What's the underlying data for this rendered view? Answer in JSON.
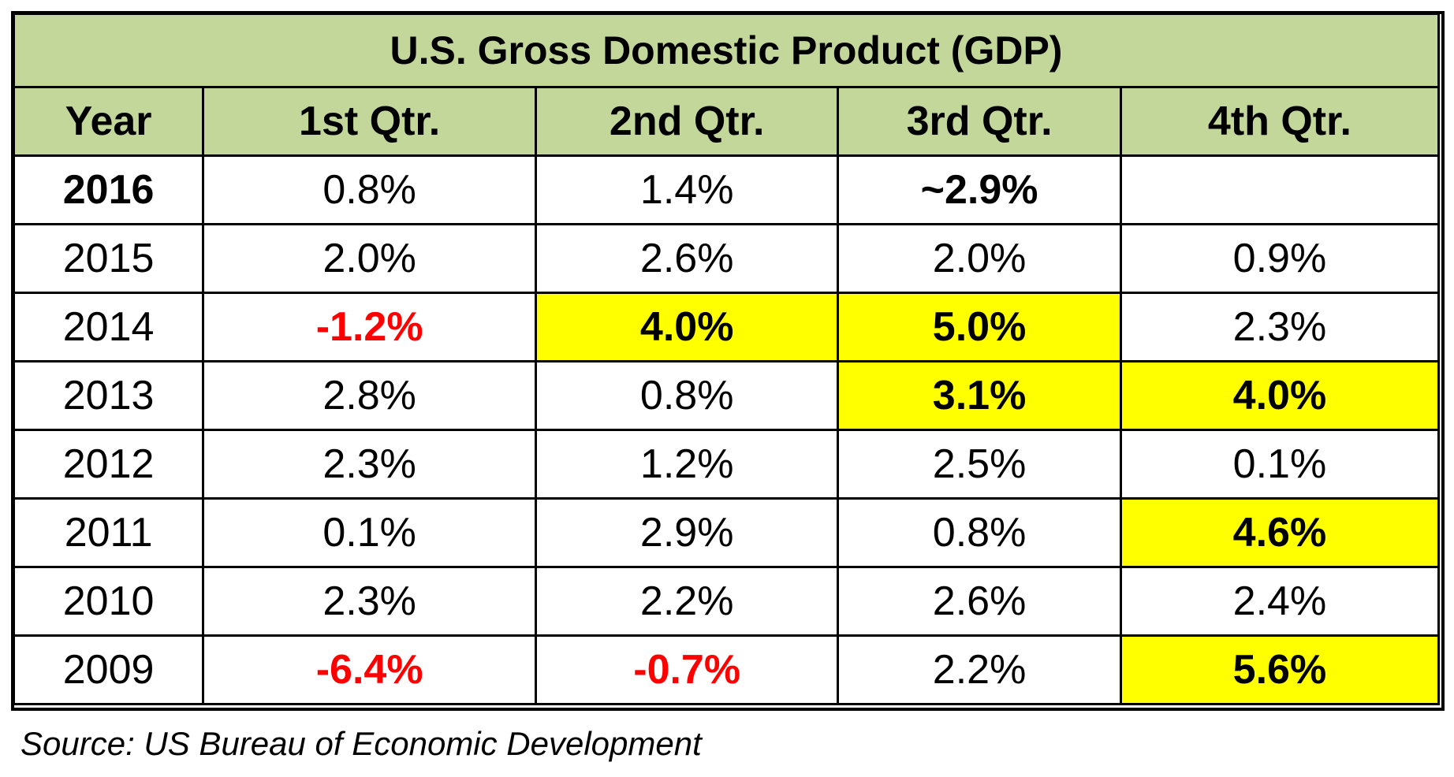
{
  "colors": {
    "header_bg": "#c4d79b",
    "highlight_bg": "#ffff00",
    "negative_text": "#ff0000",
    "border": "#000000"
  },
  "chart_data": {
    "type": "table",
    "title": "U.S. Gross Domestic Product (GDP)",
    "columns": [
      "Year",
      "1st Qtr.",
      "2nd Qtr.",
      "3rd Qtr.",
      "4th Qtr."
    ],
    "rows": [
      {
        "year": "2016",
        "year_bold": true,
        "cells": [
          {
            "text": "0.8%",
            "value": 0.8
          },
          {
            "text": "1.4%",
            "value": 1.4
          },
          {
            "text": "~2.9%",
            "value": 2.9,
            "bold": true
          },
          {
            "text": "",
            "value": null
          }
        ]
      },
      {
        "year": "2015",
        "cells": [
          {
            "text": "2.0%",
            "value": 2.0
          },
          {
            "text": "2.6%",
            "value": 2.6
          },
          {
            "text": "2.0%",
            "value": 2.0
          },
          {
            "text": "0.9%",
            "value": 0.9
          }
        ]
      },
      {
        "year": "2014",
        "cells": [
          {
            "text": "-1.2%",
            "value": -1.2,
            "negative": true
          },
          {
            "text": "4.0%",
            "value": 4.0,
            "highlight": true
          },
          {
            "text": "5.0%",
            "value": 5.0,
            "highlight": true
          },
          {
            "text": "2.3%",
            "value": 2.3
          }
        ]
      },
      {
        "year": "2013",
        "cells": [
          {
            "text": "2.8%",
            "value": 2.8
          },
          {
            "text": "0.8%",
            "value": 0.8
          },
          {
            "text": "3.1%",
            "value": 3.1,
            "highlight": true
          },
          {
            "text": "4.0%",
            "value": 4.0,
            "highlight": true
          }
        ]
      },
      {
        "year": "2012",
        "cells": [
          {
            "text": "2.3%",
            "value": 2.3
          },
          {
            "text": "1.2%",
            "value": 1.2
          },
          {
            "text": "2.5%",
            "value": 2.5
          },
          {
            "text": "0.1%",
            "value": 0.1
          }
        ]
      },
      {
        "year": "2011",
        "cells": [
          {
            "text": "0.1%",
            "value": 0.1
          },
          {
            "text": "2.9%",
            "value": 2.9
          },
          {
            "text": "0.8%",
            "value": 0.8
          },
          {
            "text": "4.6%",
            "value": 4.6,
            "highlight": true
          }
        ]
      },
      {
        "year": "2010",
        "cells": [
          {
            "text": "2.3%",
            "value": 2.3
          },
          {
            "text": "2.2%",
            "value": 2.2
          },
          {
            "text": "2.6%",
            "value": 2.6
          },
          {
            "text": "2.4%",
            "value": 2.4
          }
        ]
      },
      {
        "year": "2009",
        "cells": [
          {
            "text": "-6.4%",
            "value": -6.4,
            "negative": true
          },
          {
            "text": "-0.7%",
            "value": -0.7,
            "negative": true
          },
          {
            "text": "2.2%",
            "value": 2.2
          },
          {
            "text": "5.6%",
            "value": 5.6,
            "highlight": true
          }
        ]
      }
    ],
    "source": "Source: US Bureau of Economic Development"
  }
}
